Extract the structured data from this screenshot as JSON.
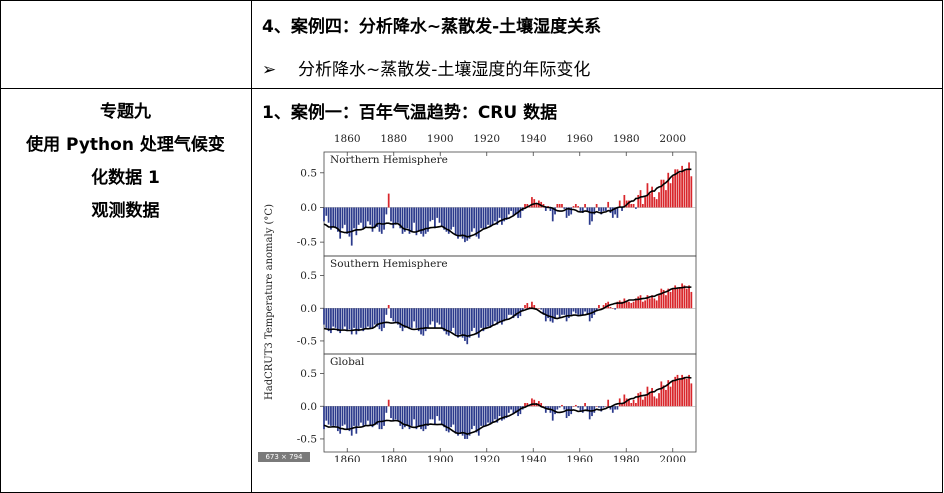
{
  "row1": {
    "heading": "4、案例四：分析降水~蒸散发-土壤湿度关系",
    "bullet_icon": "➢",
    "bullet_text": "分析降水~蒸散发-土壤湿度的年际变化"
  },
  "row2": {
    "left_lines": [
      "专题九",
      "使用 Python 处理气候变",
      "化数据 1",
      "观测数据"
    ],
    "heading": "1、案例一：百年气温趋势：CRU 数据"
  },
  "figure_badge": "673 × 794",
  "chart_data": {
    "type": "bar",
    "ylabel": "HadCRUT3 Temperature anomaly (°C)",
    "x_ticks": [
      1860,
      1880,
      1900,
      1920,
      1940,
      1960,
      1980,
      2000
    ],
    "xlim": [
      1850,
      2010
    ],
    "ylim": [
      -0.7,
      0.8
    ],
    "y_ticks": [
      0.5,
      0.0,
      -0.5
    ],
    "y_tick_labels": [
      "0.5",
      "0.0",
      "-0.5"
    ],
    "colors": {
      "positive": "#d9262b",
      "negative": "#2b3a8c",
      "smooth": "#000000"
    },
    "panels": [
      {
        "name": "Northern Hemisphere",
        "years": "1850-2008",
        "values": [
          -0.2,
          -0.12,
          -0.22,
          -0.32,
          -0.28,
          -0.3,
          -0.35,
          -0.45,
          -0.3,
          -0.25,
          -0.38,
          -0.42,
          -0.55,
          -0.3,
          -0.4,
          -0.25,
          -0.22,
          -0.3,
          -0.28,
          -0.2,
          -0.25,
          -0.35,
          -0.3,
          -0.28,
          -0.35,
          -0.38,
          -0.32,
          -0.1,
          0.2,
          -0.2,
          -0.3,
          -0.25,
          -0.22,
          -0.3,
          -0.38,
          -0.35,
          -0.3,
          -0.38,
          -0.35,
          -0.22,
          -0.4,
          -0.35,
          -0.38,
          -0.42,
          -0.38,
          -0.35,
          -0.2,
          -0.18,
          -0.3,
          -0.15,
          -0.22,
          -0.28,
          -0.32,
          -0.35,
          -0.38,
          -0.32,
          -0.28,
          -0.4,
          -0.45,
          -0.42,
          -0.45,
          -0.5,
          -0.48,
          -0.45,
          -0.35,
          -0.3,
          -0.42,
          -0.45,
          -0.3,
          -0.32,
          -0.3,
          -0.25,
          -0.28,
          -0.25,
          -0.2,
          -0.25,
          -0.15,
          -0.25,
          -0.2,
          -0.18,
          -0.1,
          -0.05,
          -0.12,
          -0.1,
          -0.15,
          -0.15,
          -0.05,
          0.05,
          0.05,
          0.02,
          0.15,
          0.12,
          0.05,
          0.1,
          0.08,
          0.05,
          -0.05,
          0.02,
          -0.05,
          -0.2,
          -0.1,
          0.05,
          0.05,
          0.05,
          -0.02,
          -0.15,
          -0.12,
          -0.1,
          0.02,
          0.05,
          0.02,
          -0.05,
          -0.08,
          0.05,
          -0.05,
          -0.25,
          -0.2,
          -0.1,
          0.05,
          -0.05,
          -0.1,
          -0.05,
          -0.05,
          0.08,
          -0.08,
          -0.15,
          -0.1,
          -0.15,
          0.1,
          -0.05,
          0.18,
          0.1,
          0.1,
          0.05,
          0.05,
          -0.02,
          0.18,
          0.25,
          0.05,
          0.15,
          0.35,
          0.2,
          0.3,
          0.15,
          0.12,
          0.22,
          0.4,
          0.4,
          0.25,
          0.5,
          0.35,
          0.45,
          0.55,
          0.55,
          0.5,
          0.6,
          0.55,
          0.55,
          0.65,
          0.45
        ]
      },
      {
        "name": "Southern Hemisphere",
        "years": "1850-2008",
        "values": [
          -0.25,
          -0.3,
          -0.35,
          -0.38,
          -0.28,
          -0.3,
          -0.35,
          -0.38,
          -0.32,
          -0.28,
          -0.35,
          -0.32,
          -0.4,
          -0.3,
          -0.4,
          -0.35,
          -0.3,
          -0.35,
          -0.3,
          -0.28,
          -0.32,
          -0.3,
          -0.25,
          -0.28,
          -0.32,
          -0.35,
          -0.3,
          -0.1,
          0.05,
          -0.15,
          -0.2,
          -0.22,
          -0.25,
          -0.3,
          -0.35,
          -0.3,
          -0.28,
          -0.32,
          -0.3,
          -0.2,
          -0.3,
          -0.35,
          -0.4,
          -0.42,
          -0.35,
          -0.3,
          -0.25,
          -0.2,
          -0.3,
          -0.22,
          -0.25,
          -0.3,
          -0.35,
          -0.4,
          -0.42,
          -0.35,
          -0.3,
          -0.4,
          -0.45,
          -0.4,
          -0.45,
          -0.5,
          -0.55,
          -0.45,
          -0.35,
          -0.3,
          -0.4,
          -0.45,
          -0.3,
          -0.35,
          -0.3,
          -0.28,
          -0.3,
          -0.25,
          -0.2,
          -0.25,
          -0.2,
          -0.25,
          -0.2,
          -0.18,
          -0.1,
          -0.1,
          -0.15,
          -0.12,
          -0.15,
          -0.12,
          -0.05,
          0.05,
          0.08,
          0.02,
          0.1,
          0.05,
          0.0,
          0.0,
          -0.02,
          -0.1,
          -0.2,
          -0.15,
          -0.2,
          -0.22,
          -0.15,
          -0.1,
          -0.15,
          -0.1,
          -0.1,
          -0.2,
          -0.15,
          -0.1,
          -0.05,
          -0.08,
          -0.1,
          -0.12,
          -0.1,
          -0.05,
          -0.1,
          -0.2,
          -0.15,
          -0.1,
          -0.05,
          0.05,
          0.0,
          0.05,
          0.08,
          0.1,
          0.02,
          0.0,
          -0.02,
          0.1,
          0.12,
          0.1,
          0.15,
          0.12,
          0.1,
          0.08,
          0.1,
          0.15,
          0.18,
          0.2,
          0.1,
          0.12,
          0.2,
          0.15,
          0.2,
          0.15,
          0.12,
          0.2,
          0.3,
          0.28,
          0.2,
          0.3,
          0.25,
          0.3,
          0.35,
          0.3,
          0.32,
          0.38,
          0.35,
          0.3,
          0.35,
          0.25
        ]
      },
      {
        "name": "Global",
        "years": "1850-2008",
        "values": [
          -0.35,
          -0.22,
          -0.28,
          -0.3,
          -0.3,
          -0.3,
          -0.38,
          -0.42,
          -0.3,
          -0.28,
          -0.35,
          -0.38,
          -0.45,
          -0.3,
          -0.42,
          -0.3,
          -0.25,
          -0.3,
          -0.28,
          -0.22,
          -0.28,
          -0.32,
          -0.28,
          -0.28,
          -0.35,
          -0.35,
          -0.3,
          -0.1,
          0.1,
          -0.18,
          -0.22,
          -0.2,
          -0.22,
          -0.3,
          -0.35,
          -0.32,
          -0.3,
          -0.35,
          -0.3,
          -0.2,
          -0.35,
          -0.3,
          -0.35,
          -0.38,
          -0.35,
          -0.3,
          -0.2,
          -0.2,
          -0.28,
          -0.15,
          -0.22,
          -0.28,
          -0.32,
          -0.38,
          -0.4,
          -0.32,
          -0.28,
          -0.42,
          -0.45,
          -0.42,
          -0.45,
          -0.5,
          -0.5,
          -0.45,
          -0.35,
          -0.3,
          -0.4,
          -0.45,
          -0.3,
          -0.32,
          -0.3,
          -0.25,
          -0.28,
          -0.25,
          -0.2,
          -0.25,
          -0.15,
          -0.22,
          -0.2,
          -0.18,
          -0.1,
          -0.05,
          -0.12,
          -0.1,
          -0.15,
          -0.12,
          -0.05,
          0.05,
          0.05,
          0.02,
          0.12,
          0.1,
          0.05,
          0.08,
          0.05,
          0.0,
          -0.1,
          -0.05,
          -0.1,
          -0.22,
          -0.12,
          -0.05,
          -0.02,
          0.02,
          -0.05,
          -0.18,
          -0.15,
          -0.12,
          0.0,
          0.02,
          -0.02,
          -0.08,
          -0.1,
          0.05,
          -0.08,
          -0.2,
          -0.15,
          -0.1,
          0.0,
          -0.02,
          -0.08,
          -0.02,
          0.0,
          0.1,
          -0.05,
          -0.1,
          -0.05,
          -0.05,
          0.12,
          0.05,
          0.18,
          0.12,
          0.1,
          0.05,
          0.1,
          0.05,
          0.2,
          0.22,
          0.1,
          0.15,
          0.3,
          0.2,
          0.28,
          0.15,
          0.12,
          0.2,
          0.38,
          0.32,
          0.25,
          0.4,
          0.3,
          0.38,
          0.45,
          0.48,
          0.42,
          0.48,
          0.45,
          0.42,
          0.48,
          0.35
        ]
      }
    ]
  }
}
